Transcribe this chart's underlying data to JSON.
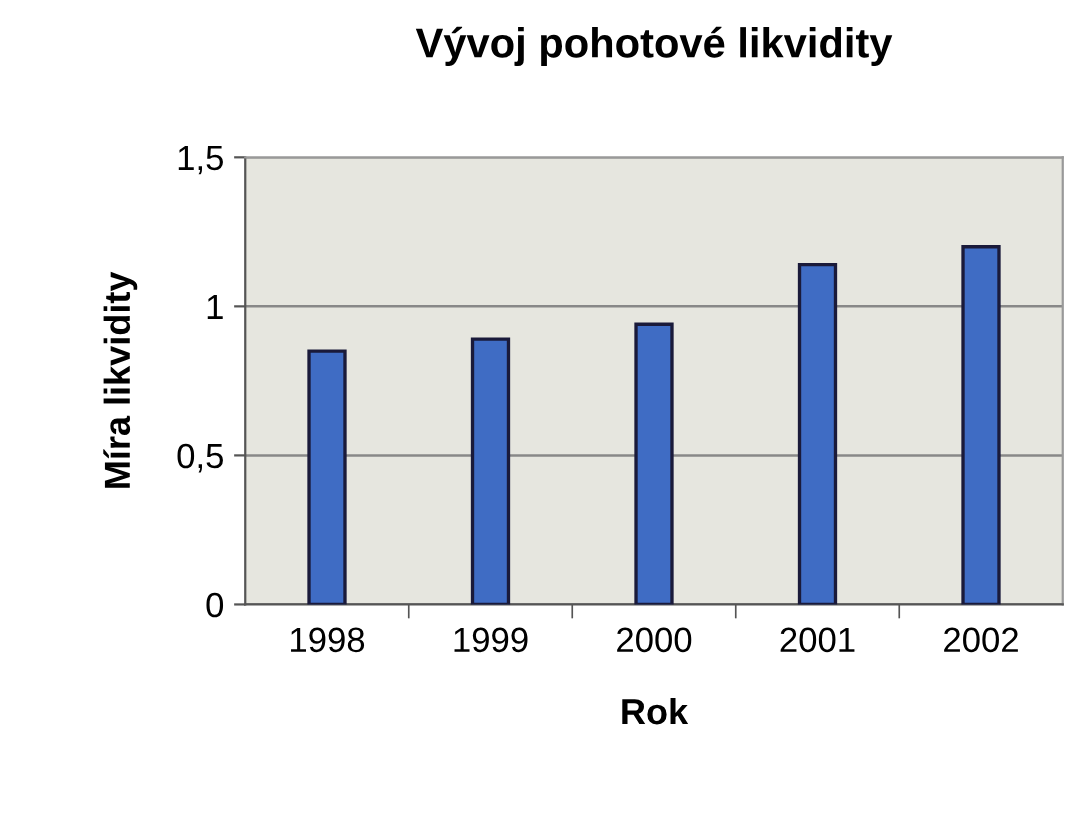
{
  "chart_data": {
    "type": "bar",
    "title": "Vývoj pohotové likvidity",
    "xlabel": "Rok",
    "ylabel": "Míra likvidity",
    "categories": [
      "1998",
      "1999",
      "2000",
      "2001",
      "2002"
    ],
    "values": [
      0.85,
      0.89,
      0.94,
      1.14,
      1.2
    ],
    "color": "#3f6cc4",
    "ylim": [
      0,
      1.5
    ],
    "yticks": [
      0,
      {
        "value": 0.5,
        "label": "0,5"
      },
      1,
      {
        "value": 1.5,
        "label": "1,5"
      }
    ],
    "grid": "y"
  }
}
